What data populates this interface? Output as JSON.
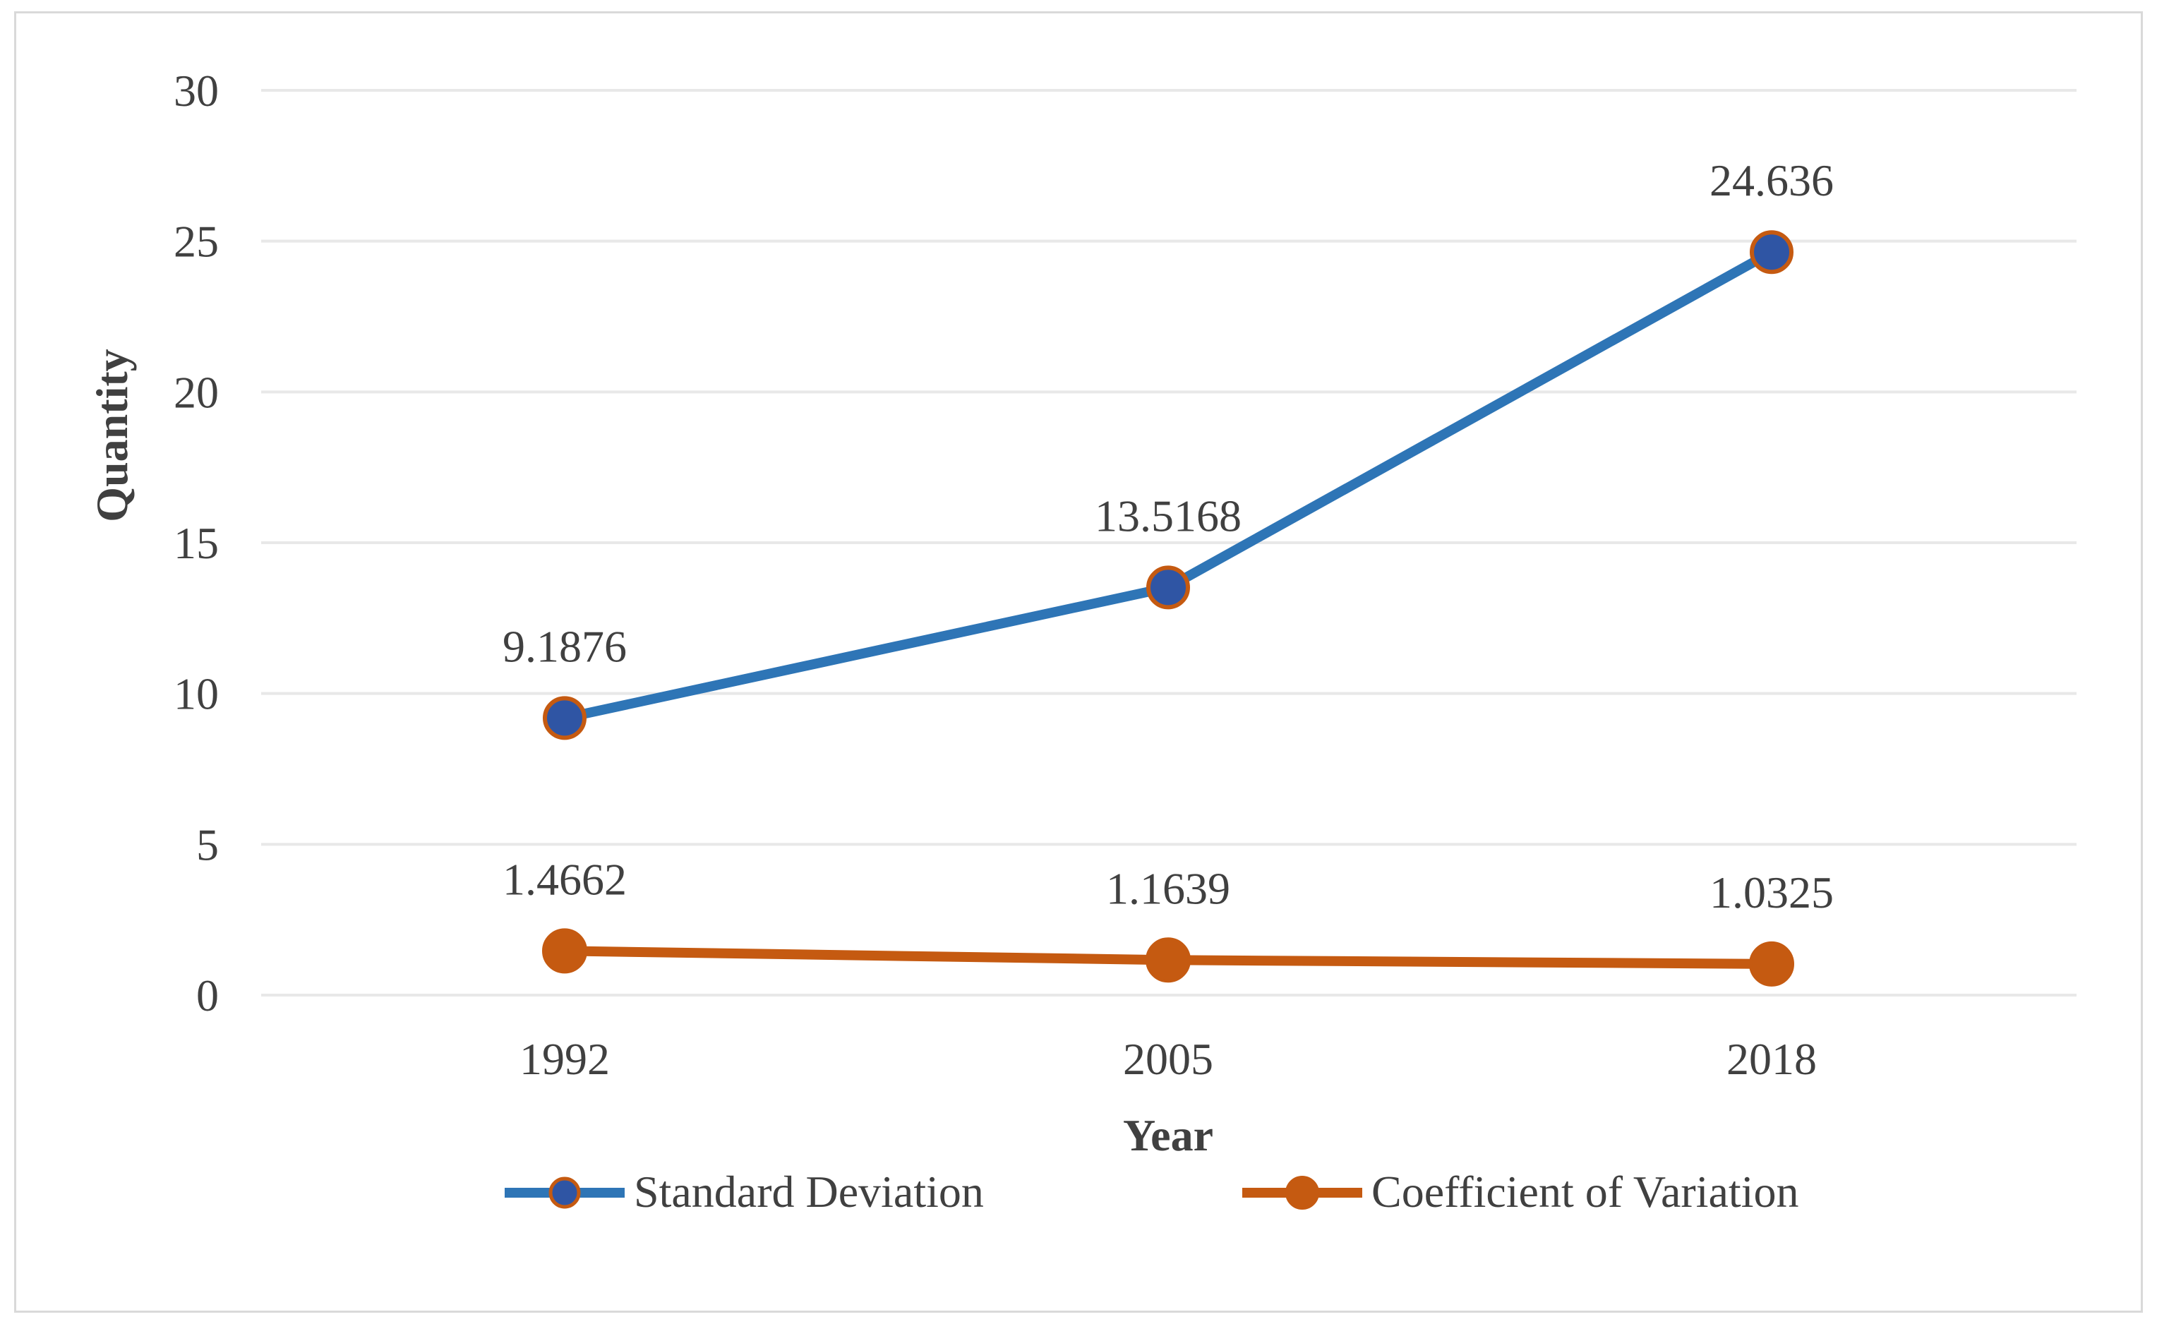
{
  "chart_data": {
    "type": "line",
    "title": "",
    "xlabel": "Year",
    "ylabel": "Quantity",
    "categories": [
      "1992",
      "2005",
      "2018"
    ],
    "ylim": [
      0,
      30
    ],
    "yticks": [
      0,
      5,
      10,
      15,
      20,
      25,
      30
    ],
    "ytick_labels": [
      "0",
      "5",
      "10",
      "15",
      "20",
      "25",
      "30"
    ],
    "grid": true,
    "legend_position": "bottom",
    "series": [
      {
        "name": "Standard Deviation",
        "values": [
          9.1876,
          13.5168,
          24.636
        ],
        "labels": [
          "9.1876",
          "13.5168",
          "24.636"
        ],
        "line_color": "#2e75b6",
        "marker_fill": "#2f55a4",
        "marker_edge": "#c55a11"
      },
      {
        "name": "Coefficient of Variation",
        "values": [
          1.4662,
          1.1639,
          1.0325
        ],
        "labels": [
          "1.4662",
          "1.1639",
          "1.0325"
        ],
        "line_color": "#c55a11",
        "marker_fill": "#c55a11",
        "marker_edge": "#c55a11"
      }
    ]
  }
}
